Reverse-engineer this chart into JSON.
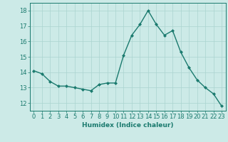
{
  "x": [
    0,
    1,
    2,
    3,
    4,
    5,
    6,
    7,
    8,
    9,
    10,
    11,
    12,
    13,
    14,
    15,
    16,
    17,
    18,
    19,
    20,
    21,
    22,
    23
  ],
  "y": [
    14.1,
    13.9,
    13.4,
    13.1,
    13.1,
    13.0,
    12.9,
    12.8,
    13.2,
    13.3,
    13.3,
    15.1,
    16.4,
    17.1,
    18.0,
    17.1,
    16.4,
    16.7,
    15.3,
    14.3,
    13.5,
    13.0,
    12.6,
    11.8
  ],
  "line_color": "#1a7a6e",
  "marker": "D",
  "marker_size": 2.0,
  "bg_color": "#cceae7",
  "grid_color": "#aad4d0",
  "xlabel": "Humidex (Indice chaleur)",
  "xlim": [
    -0.5,
    23.5
  ],
  "ylim": [
    11.5,
    18.5
  ],
  "yticks": [
    12,
    13,
    14,
    15,
    16,
    17,
    18
  ],
  "xticks": [
    0,
    1,
    2,
    3,
    4,
    5,
    6,
    7,
    8,
    9,
    10,
    11,
    12,
    13,
    14,
    15,
    16,
    17,
    18,
    19,
    20,
    21,
    22,
    23
  ],
  "linewidth": 1.0,
  "label_fontsize": 6.5,
  "tick_fontsize": 6.0
}
